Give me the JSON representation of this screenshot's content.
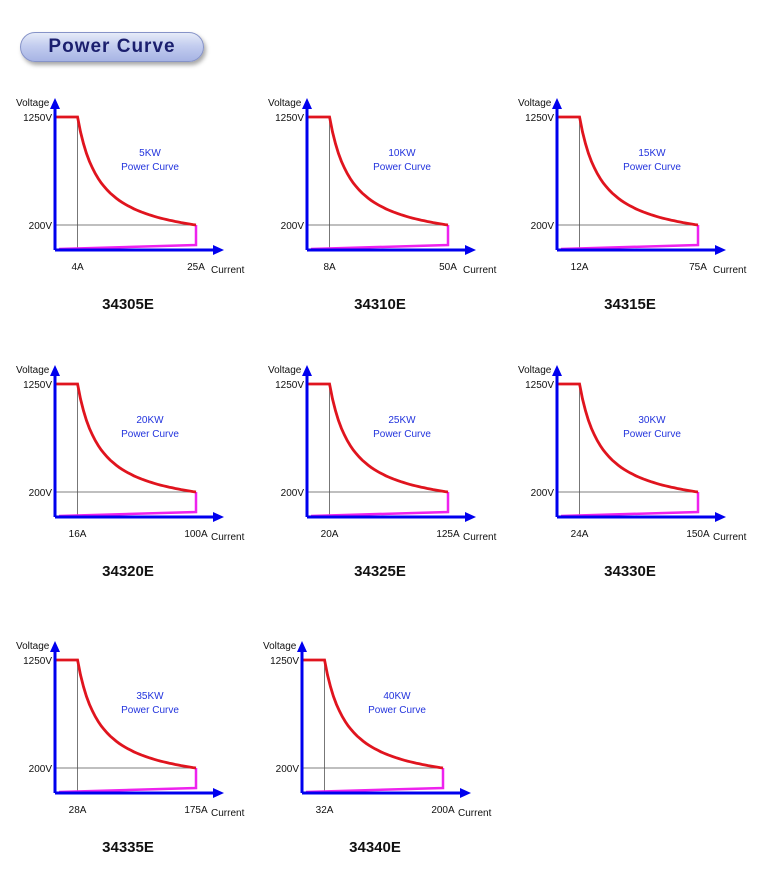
{
  "header": {
    "title": "Power Curve"
  },
  "colors": {
    "axis": "#0000ee",
    "curve": "#e0141e",
    "return": "#ee22ee",
    "label": "#2233dd",
    "grid": "#555555"
  },
  "axis_labels": {
    "y": "Voltage",
    "x": "Current"
  },
  "chart_data": [
    {
      "type": "line",
      "model": "34305E",
      "power": "5KW",
      "caption": "Power Curve",
      "v_max": "1250V",
      "v_min": "200V",
      "i_min": "4A",
      "i_max": "25A",
      "series": [
        {
          "x": [
            4,
            25
          ],
          "y": [
            1250,
            200
          ]
        }
      ]
    },
    {
      "type": "line",
      "model": "34310E",
      "power": "10KW",
      "caption": "Power Curve",
      "v_max": "1250V",
      "v_min": "200V",
      "i_min": "8A",
      "i_max": "50A",
      "series": [
        {
          "x": [
            8,
            50
          ],
          "y": [
            1250,
            200
          ]
        }
      ]
    },
    {
      "type": "line",
      "model": "34315E",
      "power": "15KW",
      "caption": "Power Curve",
      "v_max": "1250V",
      "v_min": "200V",
      "i_min": "12A",
      "i_max": "75A",
      "series": [
        {
          "x": [
            12,
            75
          ],
          "y": [
            1250,
            200
          ]
        }
      ]
    },
    {
      "type": "line",
      "model": "34320E",
      "power": "20KW",
      "caption": "Power Curve",
      "v_max": "1250V",
      "v_min": "200V",
      "i_min": "16A",
      "i_max": "100A",
      "series": [
        {
          "x": [
            16,
            100
          ],
          "y": [
            1250,
            200
          ]
        }
      ]
    },
    {
      "type": "line",
      "model": "34325E",
      "power": "25KW",
      "caption": "Power Curve",
      "v_max": "1250V",
      "v_min": "200V",
      "i_min": "20A",
      "i_max": "125A",
      "series": [
        {
          "x": [
            20,
            125
          ],
          "y": [
            1250,
            200
          ]
        }
      ]
    },
    {
      "type": "line",
      "model": "34330E",
      "power": "30KW",
      "caption": "Power Curve",
      "v_max": "1250V",
      "v_min": "200V",
      "i_min": "24A",
      "i_max": "150A",
      "series": [
        {
          "x": [
            24,
            150
          ],
          "y": [
            1250,
            200
          ]
        }
      ]
    },
    {
      "type": "line",
      "model": "34335E",
      "power": "35KW",
      "caption": "Power Curve",
      "v_max": "1250V",
      "v_min": "200V",
      "i_min": "28A",
      "i_max": "175A",
      "series": [
        {
          "x": [
            28,
            175
          ],
          "y": [
            1250,
            200
          ]
        }
      ]
    },
    {
      "type": "line",
      "model": "34340E",
      "power": "40KW",
      "caption": "Power Curve",
      "v_max": "1250V",
      "v_min": "200V",
      "i_min": "32A",
      "i_max": "200A",
      "series": [
        {
          "x": [
            32,
            200
          ],
          "y": [
            1250,
            200
          ]
        }
      ]
    }
  ]
}
